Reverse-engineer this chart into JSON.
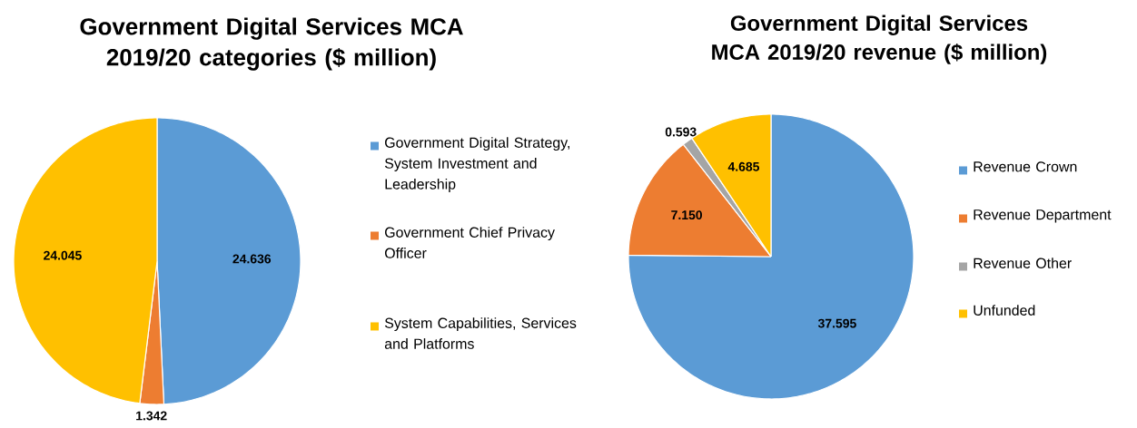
{
  "chart_data": [
    {
      "type": "pie",
      "title": "Government Digital Services MCA 2019/20 categories ($ million)",
      "categories": [
        "Government Digital Strategy, System Investment and Leadership",
        "Government Chief Privacy Officer",
        "System Capabilities, Services and Platforms"
      ],
      "values": [
        24.636,
        1.342,
        24.045
      ],
      "colors": [
        "#5b9bd5",
        "#ed7d31",
        "#ffc000"
      ],
      "value_labels": [
        "24.636",
        "1.342",
        "24.045"
      ],
      "legend": "right"
    },
    {
      "type": "pie",
      "title": "Government Digital Services MCA 2019/20 revenue ($ million)",
      "categories": [
        "Revenue Crown",
        "Revenue Department",
        "Revenue Other",
        "Unfunded"
      ],
      "values": [
        37.595,
        7.15,
        0.593,
        4.685
      ],
      "colors": [
        "#5b9bd5",
        "#ed7d31",
        "#a5a5a5",
        "#ffc000"
      ],
      "value_labels": [
        "37.595",
        "7.150",
        "0.593",
        "4.685"
      ],
      "legend": "right"
    }
  ]
}
